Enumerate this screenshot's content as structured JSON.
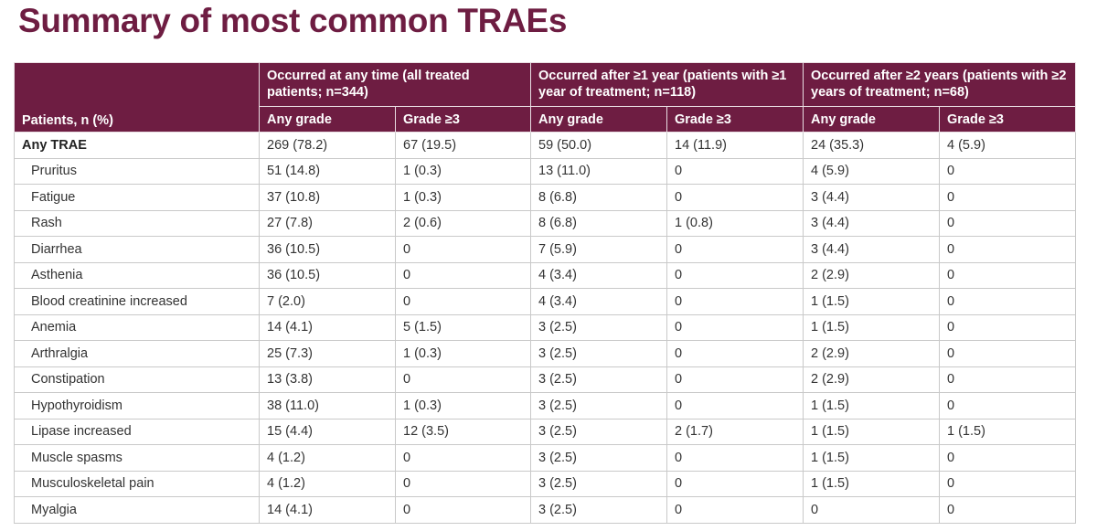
{
  "title": "Summary of most common TRAEs",
  "table": {
    "row_header": "Patients, n (%)",
    "groups": [
      "Occurred at any time (all treated patients; n=344)",
      "Occurred after ≥1 year (patients with ≥1 year of treatment; n=118)",
      "Occurred after ≥2 years (patients with ≥2 years of treatment; n=68)"
    ],
    "subheaders": [
      "Any grade",
      "Grade ≥3",
      "Any grade",
      "Grade ≥3",
      "Any grade",
      "Grade ≥3"
    ],
    "rows": [
      [
        "Any TRAE",
        "269 (78.2)",
        "67 (19.5)",
        "59 (50.0)",
        "14 (11.9)",
        "24 (35.3)",
        "4 (5.9)"
      ],
      [
        "Pruritus",
        "51 (14.8)",
        "1 (0.3)",
        "13 (11.0)",
        "0",
        "4 (5.9)",
        "0"
      ],
      [
        "Fatigue",
        "37 (10.8)",
        "1 (0.3)",
        "8 (6.8)",
        "0",
        "3 (4.4)",
        "0"
      ],
      [
        "Rash",
        "27 (7.8)",
        "2 (0.6)",
        "8 (6.8)",
        "1 (0.8)",
        "3 (4.4)",
        "0"
      ],
      [
        "Diarrhea",
        "36 (10.5)",
        "0",
        "7 (5.9)",
        "0",
        "3 (4.4)",
        "0"
      ],
      [
        "Asthenia",
        "36 (10.5)",
        "0",
        "4 (3.4)",
        "0",
        "2 (2.9)",
        "0"
      ],
      [
        "Blood creatinine increased",
        "7 (2.0)",
        "0",
        "4 (3.4)",
        "0",
        "1 (1.5)",
        "0"
      ],
      [
        "Anemia",
        "14 (4.1)",
        "5 (1.5)",
        "3 (2.5)",
        "0",
        "1 (1.5)",
        "0"
      ],
      [
        "Arthralgia",
        "25 (7.3)",
        "1 (0.3)",
        "3 (2.5)",
        "0",
        "2 (2.9)",
        "0"
      ],
      [
        "Constipation",
        "13 (3.8)",
        "0",
        "3 (2.5)",
        "0",
        "2 (2.9)",
        "0"
      ],
      [
        "Hypothyroidism",
        "38 (11.0)",
        "1 (0.3)",
        "3 (2.5)",
        "0",
        "1 (1.5)",
        "0"
      ],
      [
        "Lipase increased",
        "15 (4.4)",
        "12 (3.5)",
        "3 (2.5)",
        "2 (1.7)",
        "1 (1.5)",
        "1 (1.5)"
      ],
      [
        "Muscle spasms",
        "4 (1.2)",
        "0",
        "3 (2.5)",
        "0",
        "1 (1.5)",
        "0"
      ],
      [
        "Musculoskeletal pain",
        "4 (1.2)",
        "0",
        "3 (2.5)",
        "0",
        "1 (1.5)",
        "0"
      ],
      [
        "Myalgia",
        "14 (4.1)",
        "0",
        "3 (2.5)",
        "0",
        "0",
        "0"
      ]
    ]
  },
  "colors": {
    "header_bg": "#6e1d42",
    "title": "#6e1d42"
  }
}
